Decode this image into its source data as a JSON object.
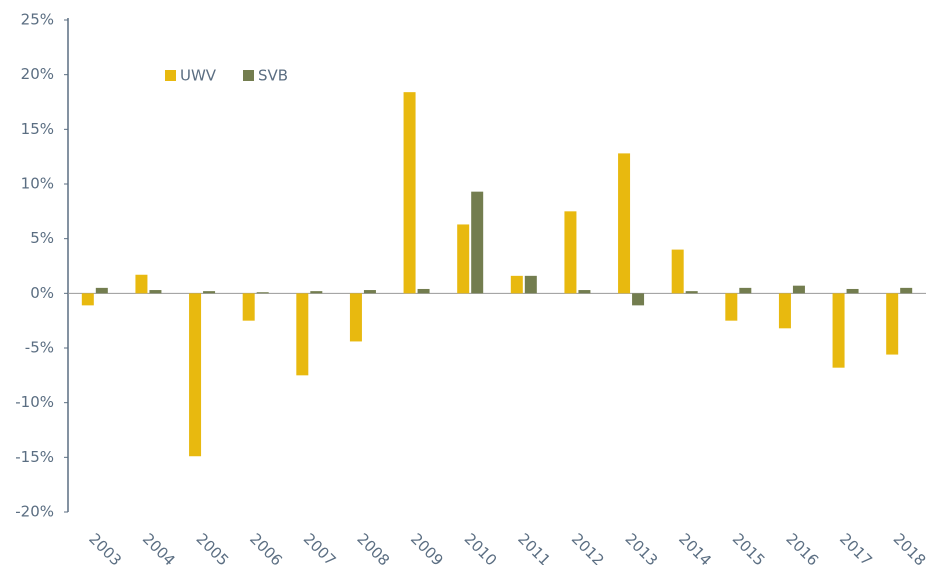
{
  "chart_data": {
    "type": "bar",
    "categories": [
      "2003",
      "2004",
      "2005",
      "2006",
      "2007",
      "2008",
      "2009",
      "2010",
      "2011",
      "2012",
      "2013",
      "2014",
      "2015",
      "2016",
      "2017",
      "2018"
    ],
    "series": [
      {
        "name": "UWV",
        "color": "#e8b90f",
        "values": [
          -1.1,
          1.7,
          -14.9,
          -2.5,
          -7.5,
          -4.4,
          18.4,
          6.3,
          1.6,
          7.5,
          12.8,
          4.0,
          -2.5,
          -3.2,
          -6.8,
          -5.6
        ]
      },
      {
        "name": "SVB",
        "color": "#737d4f",
        "values": [
          0.5,
          0.3,
          0.2,
          0.1,
          0.2,
          0.3,
          0.4,
          9.3,
          1.6,
          0.3,
          -1.1,
          0.2,
          0.5,
          0.7,
          0.4,
          0.5
        ]
      }
    ],
    "ylim": [
      -20,
      25
    ],
    "yticks": [
      {
        "value": -20,
        "label": "-20%"
      },
      {
        "value": -15,
        "label": "-15%"
      },
      {
        "value": -10,
        "label": "-10%"
      },
      {
        "value": -5,
        "label": "-5%"
      },
      {
        "value": 0,
        "label": "0%"
      },
      {
        "value": 5,
        "label": "5%"
      },
      {
        "value": 10,
        "label": "10%"
      },
      {
        "value": 15,
        "label": "15%"
      },
      {
        "value": 20,
        "label": "20%"
      },
      {
        "value": 25,
        "label": "25%"
      }
    ],
    "grid": false,
    "legend": "top-left"
  }
}
